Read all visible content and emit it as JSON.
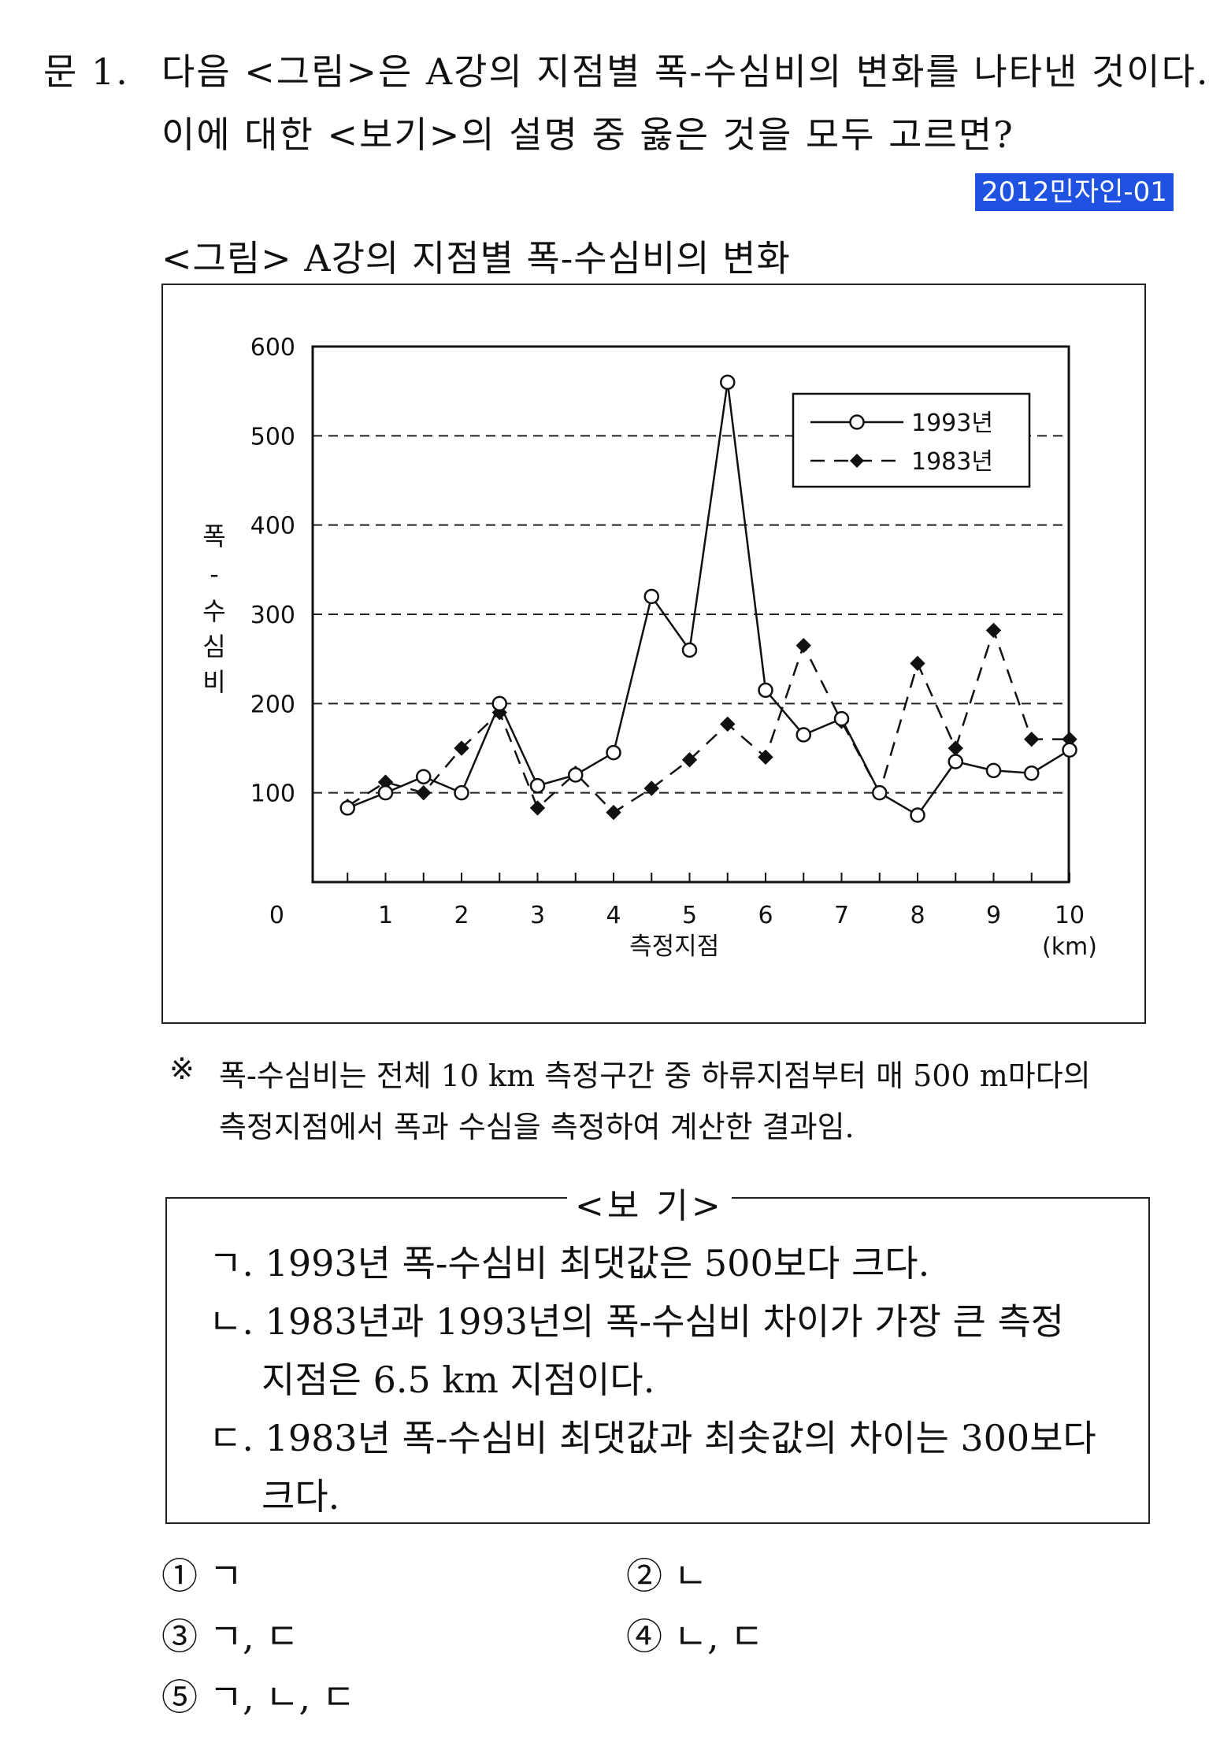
{
  "question": {
    "number": "문  1.",
    "line1": "다음 <그림>은 A강의 지점별 폭-수심비의 변화를 나타낸 것이다.",
    "line2": "이에 대한 <보기>의 설명 중 옳은 것을 모두 고르면?",
    "tag": "2012민자인-01",
    "tag_color": "#1f52e0"
  },
  "figure": {
    "title": "<그림> A강의 지점별 폭-수심비의 변화"
  },
  "chart_data": {
    "type": "line",
    "title": "",
    "xlabel": "측정지점",
    "xunit": "(km)",
    "ylabel": "폭-수심비",
    "ylabel_chars": [
      "폭",
      "-",
      "수",
      "심",
      "비"
    ],
    "origin_label": "0",
    "xlim": [
      0,
      10
    ],
    "ylim": [
      0,
      600
    ],
    "xticks": [
      1,
      2,
      3,
      4,
      5,
      6,
      7,
      8,
      9,
      10
    ],
    "yticks": [
      100,
      200,
      300,
      400,
      500,
      600
    ],
    "grid": "horizontal dashed",
    "legend_position": "top-right",
    "x": [
      0.5,
      1,
      1.5,
      2,
      2.5,
      3,
      3.5,
      4,
      4.5,
      5,
      5.5,
      6,
      6.5,
      7,
      7.5,
      8,
      8.5,
      9,
      9.5,
      10
    ],
    "series": [
      {
        "name": "1993년",
        "style": "solid",
        "marker": "open-circle",
        "values": [
          83,
          100,
          118,
          100,
          200,
          108,
          120,
          145,
          320,
          260,
          560,
          215,
          165,
          183,
          100,
          75,
          135,
          125,
          122,
          148
        ]
      },
      {
        "name": "1983년",
        "style": "dashed",
        "marker": "filled-diamond",
        "values": [
          85,
          112,
          100,
          150,
          190,
          83,
          122,
          78,
          105,
          137,
          177,
          140,
          265,
          180,
          100,
          245,
          150,
          282,
          160,
          160
        ]
      }
    ]
  },
  "note": {
    "mark": "※",
    "line1": "폭-수심비는 전체 10 km 측정구간 중 하류지점부터 매 500 m마다의",
    "line2": "측정지점에서 폭과 수심을 측정하여 계산한 결과임."
  },
  "bogi": {
    "title": "<보  기>",
    "items": [
      "ㄱ. 1993년 폭-수심비 최댓값은 500보다 크다.",
      "ㄴ. 1983년과 1993년의 폭-수심비 차이가 가장 큰 측정",
      "지점은 6.5 km 지점이다.",
      "ㄷ. 1983년 폭-수심비 최댓값과 최솟값의 차이는 300보다",
      "크다."
    ]
  },
  "choices": [
    "① ㄱ",
    "② ㄴ",
    "③ ㄱ, ㄷ",
    "④ ㄴ, ㄷ",
    "⑤ ㄱ, ㄴ, ㄷ"
  ]
}
